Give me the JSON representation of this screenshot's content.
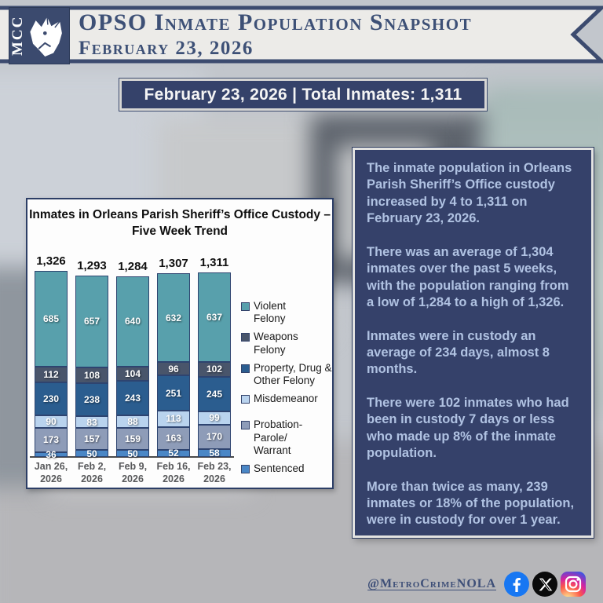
{
  "header": {
    "logo_text": "MCC",
    "title": "OPSO Inmate Population Snapshot",
    "date": "February 23, 2026"
  },
  "banner": {
    "text": "February 23, 2026 | Total Inmates: 1,311"
  },
  "chart_data": {
    "type": "bar",
    "stacked": true,
    "title": "Inmates in Orleans Parish Sheriff’s Office Custody –\nFive Week Trend",
    "categories": [
      "Jan 26,\n2026",
      "Feb 2,\n2026",
      "Feb 9,\n2026",
      "Feb 16,\n2026",
      "Feb 23,\n2026"
    ],
    "totals": [
      "1,326",
      "1,293",
      "1,284",
      "1,307",
      "1,311"
    ],
    "series": [
      {
        "name": "Violent Felony",
        "label": "Violent\nFelony",
        "color": "#58a0ac",
        "values": [
          685,
          657,
          640,
          632,
          637
        ]
      },
      {
        "name": "Weapons Felony",
        "label": "Weapons\nFelony",
        "color": "#49556b",
        "values": [
          112,
          108,
          104,
          96,
          102
        ]
      },
      {
        "name": "Property, Drug & Other Felony",
        "label": "Property, Drug &\nOther Felony",
        "color": "#2b5d8f",
        "values": [
          230,
          238,
          243,
          251,
          245
        ]
      },
      {
        "name": "Misdemeanor",
        "label": "Misdemeanor",
        "color": "#b9d3ee",
        "values": [
          90,
          83,
          88,
          113,
          99
        ]
      },
      {
        "name": "Probation-Parole/Warrant",
        "label": "Probation-Parole/\nWarrant",
        "color": "#8e9cb8",
        "values": [
          173,
          157,
          159,
          163,
          170
        ]
      },
      {
        "name": "Sentenced",
        "label": "Sentenced",
        "color": "#4a87c6",
        "values": [
          36,
          50,
          50,
          52,
          58
        ]
      }
    ],
    "xlabel": "",
    "ylabel": "",
    "y_axis_visible": false,
    "grid": false,
    "legend_position": "right",
    "bar_border_color": "#2e4470"
  },
  "panel": {
    "paragraphs": [
      "The inmate population in Orleans Parish Sheriff’s Office custody increased by 4 to 1,311 on February 23, 2026.",
      "There was an average of 1,304 inmates over the past 5 weeks, with the population ranging from a low of 1,284 to a high of 1,326.",
      "Inmates were in custody an average of 234 days, almost 8 months.",
      "There were 102 inmates who had been in custody 7 days or less who made up 8% of the inmate population.",
      "More than twice as many, 239 inmates or 18% of the population, were in custody for over 1 year."
    ]
  },
  "footer": {
    "handle": "@MetroCrimeNOLA",
    "icons": [
      "facebook-icon",
      "x-icon",
      "instagram-icon"
    ],
    "facebook_color": "#1877f2"
  }
}
